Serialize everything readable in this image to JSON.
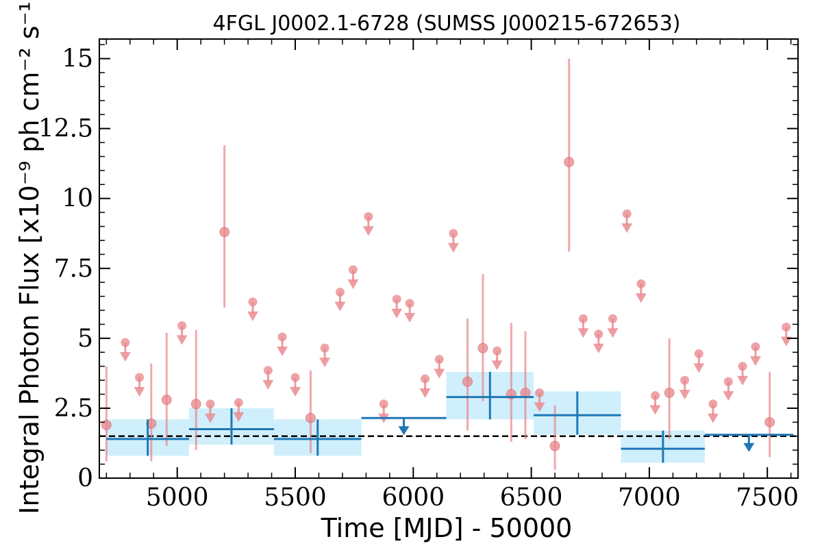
{
  "chart_data": {
    "type": "scatter",
    "title": "4FGL J0002.1-6728 (SUMSS J000215-672653)",
    "xlabel": "Time [MJD] - 50000",
    "ylabel": "Integral Photon Flux [x10⁻⁹ ph cm⁻² s⁻¹]",
    "xlim": [
      4670,
      7630
    ],
    "ylim": [
      0,
      15.7
    ],
    "xticks": [
      5000,
      5500,
      6000,
      6500,
      7000,
      7500
    ],
    "xtick_labels": [
      "5000",
      "5500",
      "6000",
      "6500",
      "7000",
      "7500"
    ],
    "yticks": [
      0,
      2.5,
      5,
      7.5,
      10,
      12.5,
      15
    ],
    "ytick_labels": [
      "0",
      "2.5",
      "5",
      "7.5",
      "10",
      "12.5",
      "15"
    ],
    "grid": false,
    "legend": "none",
    "colors": {
      "short_bins": "#e8858a",
      "long_bins": "#1f77b4",
      "long_bins_band": "#cdeefc",
      "mean_line": "#000000"
    },
    "mean_flux": 1.5,
    "short_bins": {
      "detections": [
        {
          "x": 4700,
          "y": 1.9,
          "ylo": 0.6,
          "yhi": 4.0
        },
        {
          "x": 4890,
          "y": 1.95,
          "ylo": 0.6,
          "yhi": 4.1
        },
        {
          "x": 4955,
          "y": 2.8,
          "ylo": 1.15,
          "yhi": 5.2
        },
        {
          "x": 5080,
          "y": 2.65,
          "ylo": 1.0,
          "yhi": 5.3
        },
        {
          "x": 5200,
          "y": 8.8,
          "ylo": 6.1,
          "yhi": 11.9
        },
        {
          "x": 5565,
          "y": 2.15,
          "ylo": 0.9,
          "yhi": 3.85
        },
        {
          "x": 6230,
          "y": 3.45,
          "ylo": 1.7,
          "yhi": 5.7
        },
        {
          "x": 6295,
          "y": 4.65,
          "ylo": 2.75,
          "yhi": 7.3
        },
        {
          "x": 6415,
          "y": 3.0,
          "ylo": 1.3,
          "yhi": 5.55
        },
        {
          "x": 6475,
          "y": 3.05,
          "ylo": 1.4,
          "yhi": 5.25
        },
        {
          "x": 6600,
          "y": 1.15,
          "ylo": 0.3,
          "yhi": 2.6
        },
        {
          "x": 6660,
          "y": 11.3,
          "ylo": 8.1,
          "yhi": 15.0
        },
        {
          "x": 7085,
          "y": 3.05,
          "ylo": 1.4,
          "yhi": 5.0
        },
        {
          "x": 7510,
          "y": 2.0,
          "ylo": 0.75,
          "yhi": 3.8
        }
      ],
      "upper_limits": [
        {
          "x": 4780,
          "y": 4.85
        },
        {
          "x": 4840,
          "y": 3.6
        },
        {
          "x": 5020,
          "y": 5.45
        },
        {
          "x": 5140,
          "y": 2.65
        },
        {
          "x": 5260,
          "y": 2.7
        },
        {
          "x": 5320,
          "y": 6.3
        },
        {
          "x": 5385,
          "y": 3.85
        },
        {
          "x": 5445,
          "y": 5.05
        },
        {
          "x": 5500,
          "y": 3.6
        },
        {
          "x": 5625,
          "y": 4.65
        },
        {
          "x": 5690,
          "y": 6.65
        },
        {
          "x": 5745,
          "y": 7.45
        },
        {
          "x": 5810,
          "y": 9.35
        },
        {
          "x": 5875,
          "y": 2.65
        },
        {
          "x": 5930,
          "y": 6.4
        },
        {
          "x": 5985,
          "y": 6.25
        },
        {
          "x": 6050,
          "y": 3.55
        },
        {
          "x": 6110,
          "y": 4.25
        },
        {
          "x": 6170,
          "y": 8.75
        },
        {
          "x": 6355,
          "y": 4.55
        },
        {
          "x": 6535,
          "y": 3.05
        },
        {
          "x": 6720,
          "y": 5.7
        },
        {
          "x": 6785,
          "y": 5.15
        },
        {
          "x": 6845,
          "y": 5.7
        },
        {
          "x": 6905,
          "y": 9.45
        },
        {
          "x": 6965,
          "y": 6.95
        },
        {
          "x": 7025,
          "y": 2.95
        },
        {
          "x": 7150,
          "y": 3.5
        },
        {
          "x": 7210,
          "y": 4.45
        },
        {
          "x": 7270,
          "y": 2.65
        },
        {
          "x": 7335,
          "y": 3.45
        },
        {
          "x": 7395,
          "y": 4.0
        },
        {
          "x": 7450,
          "y": 4.7
        },
        {
          "x": 7580,
          "y": 5.4
        }
      ]
    },
    "long_bins": {
      "detections": [
        {
          "x0": 4700,
          "x1": 5050,
          "xc": 4875,
          "y": 1.4,
          "ylo": 0.8,
          "yhi": 2.1
        },
        {
          "x0": 5050,
          "x1": 5410,
          "xc": 5230,
          "y": 1.75,
          "ylo": 1.2,
          "yhi": 2.5
        },
        {
          "x0": 5410,
          "x1": 5780,
          "xc": 5595,
          "y": 1.4,
          "ylo": 0.8,
          "yhi": 2.1
        },
        {
          "x0": 6140,
          "x1": 6510,
          "xc": 6325,
          "y": 2.9,
          "ylo": 2.1,
          "yhi": 3.8
        },
        {
          "x0": 6510,
          "x1": 6880,
          "xc": 6695,
          "y": 2.25,
          "ylo": 1.55,
          "yhi": 3.1
        },
        {
          "x0": 6880,
          "x1": 7235,
          "xc": 7058,
          "y": 1.05,
          "ylo": 0.55,
          "yhi": 1.7
        }
      ],
      "upper_limits": [
        {
          "x0": 5780,
          "x1": 6140,
          "xc": 5960,
          "y": 2.15
        },
        {
          "x0": 7235,
          "x1": 7610,
          "xc": 7422,
          "y": 1.55
        }
      ]
    }
  }
}
